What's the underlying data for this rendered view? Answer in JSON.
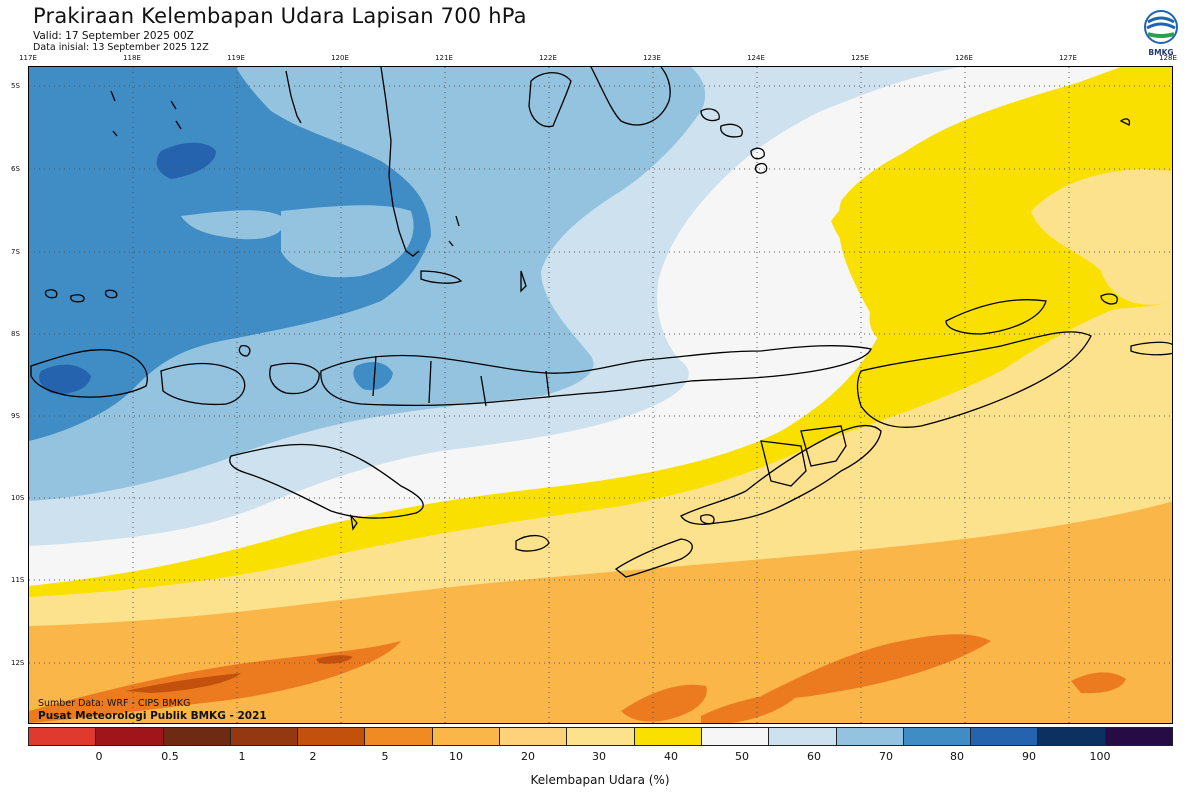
{
  "header": {
    "title": "Prakiraan Kelembapan Udara Lapisan 700 hPa",
    "valid": "Valid: 17 September 2025 00Z",
    "init": "Data inisial: 13 September 2025 12Z"
  },
  "logo": {
    "text": "BMKG",
    "icon": "bmkg-logo-icon"
  },
  "axes": {
    "longitudes": [
      "117E",
      "118E",
      "119E",
      "120E",
      "121E",
      "122E",
      "123E",
      "124E",
      "125E",
      "126E",
      "127E",
      "128E"
    ],
    "latitudes": [
      "5S",
      "6S",
      "7S",
      "8S",
      "9S",
      "10S",
      "11S",
      "12S"
    ]
  },
  "credits": {
    "source": "Sumber Data: WRF - CIPS BMKG",
    "org": "Pusat Meteorologi Publik BMKG - 2021"
  },
  "colorbar": {
    "colors": [
      "#e03a2f",
      "#a0151a",
      "#6e2a12",
      "#933810",
      "#c4500d",
      "#f08a22",
      "#fbb64a",
      "#fdd27a",
      "#fde28e",
      "#fae000",
      "#f6f6f6",
      "#cde1ee",
      "#94c3df",
      "#3f8dc4",
      "#2563ae",
      "#0c3160",
      "#260b45"
    ],
    "ticks": [
      "0",
      "0.5",
      "1",
      "2",
      "5",
      "10",
      "20",
      "30",
      "40",
      "50",
      "60",
      "70",
      "80",
      "90",
      "100"
    ],
    "label": "Kelembapan Udara (%)"
  },
  "palette": {
    "deep_orange": "#ec7b1f",
    "orange": "#fbb64a",
    "light_orange": "#fde28e",
    "yellow": "#fae000",
    "white": "#f6f6f6",
    "pale_blue": "#cde1ee",
    "light_blue": "#94c3df",
    "mid_blue": "#3f8dc4",
    "dark_blue": "#2563ae",
    "brown": "#c4500d"
  }
}
